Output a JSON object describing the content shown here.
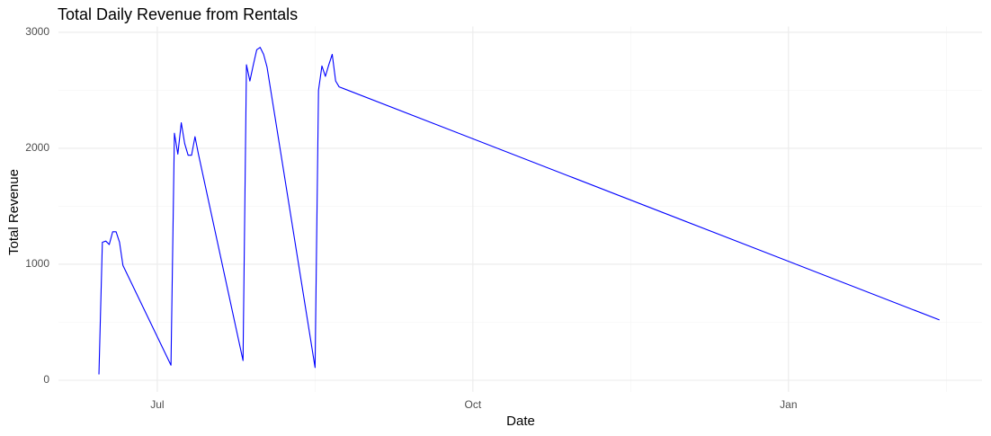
{
  "chart_data": {
    "type": "line",
    "title": "Total Daily Revenue from Rentals",
    "x_label": "Date",
    "y_label": "Total Revenue",
    "x": [
      -17,
      -16,
      -15,
      -14,
      -13,
      -12,
      -11,
      -10,
      4,
      5,
      6,
      7,
      8,
      9,
      10,
      11,
      12,
      25,
      26,
      27,
      28,
      29,
      30,
      31,
      32,
      46,
      47,
      48,
      49,
      50,
      51,
      52,
      53,
      228
    ],
    "series": [
      {
        "name": "Total Revenue",
        "color": "#0000ff",
        "values": [
          50,
          1190,
          1200,
          1170,
          1280,
          1280,
          1190,
          990,
          130,
          2130,
          1950,
          2220,
          2040,
          1940,
          1940,
          2100,
          1950,
          170,
          2720,
          2580,
          2720,
          2850,
          2870,
          2810,
          2700,
          110,
          2500,
          2710,
          2620,
          2720,
          2810,
          2580,
          2530,
          520
        ]
      }
    ],
    "xlim": [
      -28.8,
      240.4
    ],
    "xticks": [
      {
        "value": 0,
        "label": "Jul"
      },
      {
        "value": 92,
        "label": "Oct"
      },
      {
        "value": 184,
        "label": "Jan"
      }
    ],
    "ylim": [
      -100,
      3050
    ],
    "yticks": [
      0,
      1000,
      2000,
      3000
    ],
    "grid": true
  }
}
